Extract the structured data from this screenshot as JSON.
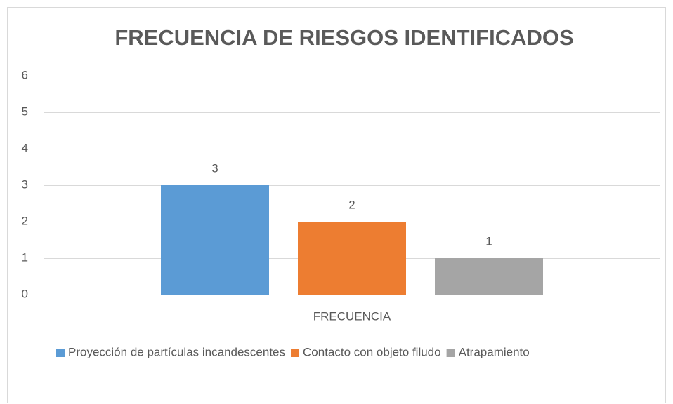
{
  "chart_data": {
    "type": "bar",
    "title": "FRECUENCIA DE RIESGOS IDENTIFICADOS",
    "categories": [
      "FRECUENCIA"
    ],
    "series": [
      {
        "name": "Proyección de partículas incandescentes",
        "color": "#5b9bd5",
        "values": [
          3
        ]
      },
      {
        "name": "Contacto con objeto filudo",
        "color": "#ed7d31",
        "values": [
          2
        ]
      },
      {
        "name": "Atrapamiento",
        "color": "#a5a5a5",
        "values": [
          1
        ]
      }
    ],
    "ylim": [
      0,
      6
    ],
    "yticks": [
      0,
      1,
      2,
      3,
      4,
      5,
      6
    ],
    "grid": true
  }
}
